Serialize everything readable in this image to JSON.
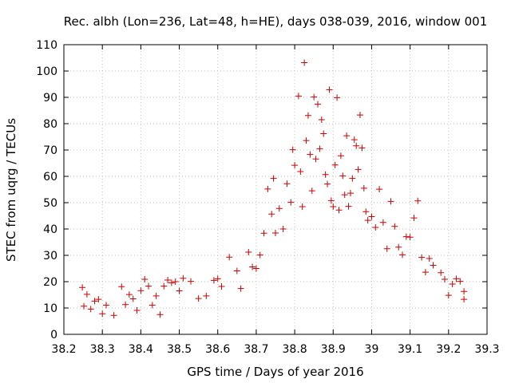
{
  "chart_data": {
    "type": "scatter",
    "title": "Rec. albh (Lon=236, Lat=48, h=HE), days 038-039, 2016, window 001",
    "xlabel": "GPS time / Days of year 2016",
    "ylabel": "STEC from uqrg / TECUs",
    "xlim": [
      38.2,
      39.3
    ],
    "ylim": [
      0,
      110
    ],
    "x_ticks": [
      38.2,
      38.3,
      38.4,
      38.5,
      38.6,
      38.7,
      38.8,
      38.9,
      39.0,
      39.1,
      39.2,
      39.3
    ],
    "x_tick_labels": [
      "38.2",
      "38.3",
      "38.4",
      "38.5",
      "38.6",
      "38.7",
      "38.8",
      "38.9",
      "39",
      "39.1",
      "39.2",
      "39.3"
    ],
    "y_ticks": [
      0,
      10,
      20,
      30,
      40,
      50,
      60,
      70,
      80,
      90,
      100,
      110
    ],
    "y_tick_labels": [
      "0",
      "10",
      "20",
      "30",
      "40",
      "50",
      "60",
      "70",
      "80",
      "90",
      "100",
      "110"
    ],
    "grid": true,
    "marker": "+",
    "color": "#cc0000",
    "series": [
      {
        "name": "STEC",
        "points": [
          [
            38.248,
            17.8
          ],
          [
            38.252,
            10.7
          ],
          [
            38.26,
            15.2
          ],
          [
            38.27,
            9.6
          ],
          [
            38.28,
            12.6
          ],
          [
            38.29,
            13.3
          ],
          [
            38.3,
            7.8
          ],
          [
            38.31,
            11.1
          ],
          [
            38.33,
            7.2
          ],
          [
            38.35,
            18.1
          ],
          [
            38.36,
            11.3
          ],
          [
            38.37,
            15.1
          ],
          [
            38.38,
            13.5
          ],
          [
            38.39,
            9.1
          ],
          [
            38.4,
            16.6
          ],
          [
            38.41,
            20.9
          ],
          [
            38.42,
            18.3
          ],
          [
            38.43,
            11.1
          ],
          [
            38.44,
            14.6
          ],
          [
            38.45,
            7.5
          ],
          [
            38.46,
            18.3
          ],
          [
            38.47,
            20.6
          ],
          [
            38.48,
            19.6
          ],
          [
            38.49,
            20.0
          ],
          [
            38.5,
            16.5
          ],
          [
            38.51,
            21.3
          ],
          [
            38.53,
            20.1
          ],
          [
            38.55,
            13.6
          ],
          [
            38.57,
            14.6
          ],
          [
            38.59,
            20.5
          ],
          [
            38.6,
            21.1
          ],
          [
            38.61,
            18.2
          ],
          [
            38.63,
            29.3
          ],
          [
            38.65,
            24.1
          ],
          [
            38.66,
            17.4
          ],
          [
            38.68,
            31.2
          ],
          [
            38.69,
            25.6
          ],
          [
            38.7,
            25.0
          ],
          [
            38.71,
            30.1
          ],
          [
            38.72,
            38.4
          ],
          [
            38.73,
            55.2
          ],
          [
            38.74,
            45.7
          ],
          [
            38.745,
            59.2
          ],
          [
            38.75,
            38.5
          ],
          [
            38.76,
            47.8
          ],
          [
            38.77,
            40.0
          ],
          [
            38.78,
            57.2
          ],
          [
            38.79,
            50.1
          ],
          [
            38.795,
            70.1
          ],
          [
            38.8,
            64.2
          ],
          [
            38.81,
            90.5
          ],
          [
            38.815,
            61.8
          ],
          [
            38.82,
            48.5
          ],
          [
            38.825,
            103.2
          ],
          [
            38.83,
            73.6
          ],
          [
            38.835,
            83.1
          ],
          [
            38.84,
            68.3
          ],
          [
            38.845,
            54.5
          ],
          [
            38.85,
            90.1
          ],
          [
            38.855,
            66.6
          ],
          [
            38.86,
            87.4
          ],
          [
            38.865,
            70.5
          ],
          [
            38.87,
            81.5
          ],
          [
            38.875,
            76.2
          ],
          [
            38.88,
            60.7
          ],
          [
            38.885,
            57.1
          ],
          [
            38.89,
            92.9
          ],
          [
            38.895,
            50.8
          ],
          [
            38.9,
            48.5
          ],
          [
            38.905,
            64.3
          ],
          [
            38.91,
            89.9
          ],
          [
            38.915,
            47.2
          ],
          [
            38.92,
            67.8
          ],
          [
            38.925,
            60.2
          ],
          [
            38.93,
            53.0
          ],
          [
            38.935,
            75.4
          ],
          [
            38.94,
            48.6
          ],
          [
            38.945,
            53.6
          ],
          [
            38.95,
            59.2
          ],
          [
            38.955,
            73.9
          ],
          [
            38.96,
            71.6
          ],
          [
            38.965,
            62.6
          ],
          [
            38.97,
            83.3
          ],
          [
            38.975,
            70.8
          ],
          [
            38.98,
            55.5
          ],
          [
            38.985,
            46.6
          ],
          [
            38.99,
            43.3
          ],
          [
            39.0,
            44.7
          ],
          [
            39.01,
            40.6
          ],
          [
            39.02,
            55.1
          ],
          [
            39.03,
            42.5
          ],
          [
            39.04,
            32.5
          ],
          [
            39.05,
            50.5
          ],
          [
            39.06,
            41.0
          ],
          [
            39.07,
            33.1
          ],
          [
            39.08,
            30.2
          ],
          [
            39.09,
            37.1
          ],
          [
            39.1,
            36.9
          ],
          [
            39.11,
            44.2
          ],
          [
            39.12,
            50.7
          ],
          [
            39.13,
            29.2
          ],
          [
            39.14,
            23.6
          ],
          [
            39.15,
            28.8
          ],
          [
            39.16,
            26.2
          ],
          [
            39.18,
            23.4
          ],
          [
            39.19,
            20.9
          ],
          [
            39.2,
            14.8
          ],
          [
            39.21,
            19.1
          ],
          [
            39.22,
            21.1
          ],
          [
            39.23,
            20.1
          ],
          [
            39.24,
            16.3
          ],
          [
            39.24,
            13.3
          ]
        ]
      }
    ]
  }
}
